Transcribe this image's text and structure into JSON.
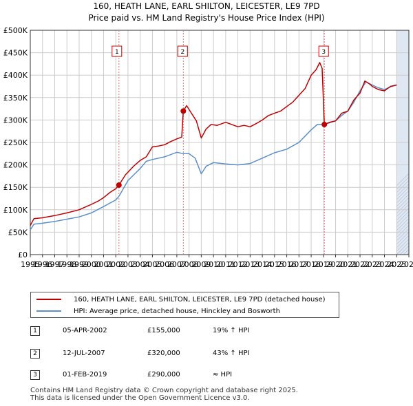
{
  "title_line1": "160, HEATH LANE, EARL SHILTON, LEICESTER, LE9 7PD",
  "title_line2": "Price paid vs. HM Land Registry's House Price Index (HPI)",
  "colors": {
    "property_line": "#c00000",
    "hpi_line": "#5b8fc8",
    "shade": "#dfe7f3",
    "grid": "#cccccc",
    "marker": "#c00000"
  },
  "legend": {
    "property": "160, HEATH LANE, EARL SHILTON, LEICESTER, LE9 7PD (detached house)",
    "hpi": "HPI: Average price, detached house, Hinckley and Bosworth"
  },
  "transactions": [
    {
      "num": "1",
      "date": "05-APR-2002",
      "price": "£155,000",
      "relation": "19% ↑ HPI"
    },
    {
      "num": "2",
      "date": "12-JUL-2007",
      "price": "£320,000",
      "relation": "43% ↑ HPI"
    },
    {
      "num": "3",
      "date": "01-FEB-2019",
      "price": "£290,000",
      "relation": "≈ HPI"
    }
  ],
  "footer": {
    "line1": "Contains HM Land Registry data © Crown copyright and database right 2025.",
    "line2": "This data is licensed under the Open Government Licence v3.0."
  },
  "chart_data": {
    "type": "line",
    "title": "Price paid vs. HM Land Registry's House Price Index (HPI)",
    "xlim": [
      1995,
      2026
    ],
    "ylim": [
      0,
      500000
    ],
    "x_ticks": [
      1995,
      1996,
      1997,
      1998,
      1999,
      2000,
      2001,
      2002,
      2003,
      2004,
      2005,
      2006,
      2007,
      2008,
      2009,
      2010,
      2011,
      2012,
      2013,
      2014,
      2015,
      2016,
      2017,
      2018,
      2019,
      2020,
      2021,
      2022,
      2023,
      2024,
      2025,
      2026
    ],
    "y_ticks": [
      0,
      50000,
      100000,
      150000,
      200000,
      250000,
      300000,
      350000,
      400000,
      450000,
      500000
    ],
    "y_tick_labels": [
      "£0",
      "£50K",
      "£100K",
      "£150K",
      "£200K",
      "£250K",
      "£300K",
      "£350K",
      "£400K",
      "£450K",
      "£500K"
    ],
    "shaded_after": 2025.0,
    "sales": [
      {
        "label": "1",
        "x": 2002.26,
        "y": 155000
      },
      {
        "label": "2",
        "x": 2007.53,
        "y": 320000
      },
      {
        "label": "3",
        "x": 2019.08,
        "y": 290000
      }
    ],
    "series": [
      {
        "name": "160, HEATH LANE, EARL SHILTON, LEICESTER, LE9 7PD (detached house)",
        "points": [
          [
            1995.0,
            65000
          ],
          [
            1995.3,
            80000
          ],
          [
            1996.0,
            82000
          ],
          [
            1997.0,
            87000
          ],
          [
            1998.0,
            93000
          ],
          [
            1999.0,
            100000
          ],
          [
            2000.0,
            112000
          ],
          [
            2000.6,
            120000
          ],
          [
            2001.0,
            127000
          ],
          [
            2001.5,
            138000
          ],
          [
            2002.0,
            147000
          ],
          [
            2002.26,
            155000
          ],
          [
            2002.8,
            178000
          ],
          [
            2003.5,
            198000
          ],
          [
            2004.0,
            210000
          ],
          [
            2004.5,
            218000
          ],
          [
            2005.0,
            240000
          ],
          [
            2005.5,
            242000
          ],
          [
            2006.0,
            245000
          ],
          [
            2006.5,
            252000
          ],
          [
            2007.0,
            258000
          ],
          [
            2007.4,
            262000
          ],
          [
            2007.53,
            320000
          ],
          [
            2007.8,
            332000
          ],
          [
            2008.2,
            315000
          ],
          [
            2008.6,
            298000
          ],
          [
            2009.0,
            260000
          ],
          [
            2009.4,
            280000
          ],
          [
            2009.8,
            290000
          ],
          [
            2010.3,
            288000
          ],
          [
            2011.0,
            295000
          ],
          [
            2011.5,
            290000
          ],
          [
            2012.0,
            285000
          ],
          [
            2012.5,
            288000
          ],
          [
            2013.0,
            285000
          ],
          [
            2013.5,
            292000
          ],
          [
            2014.0,
            300000
          ],
          [
            2014.5,
            310000
          ],
          [
            2015.0,
            315000
          ],
          [
            2015.5,
            320000
          ],
          [
            2016.0,
            330000
          ],
          [
            2016.5,
            340000
          ],
          [
            2017.0,
            355000
          ],
          [
            2017.5,
            370000
          ],
          [
            2018.0,
            400000
          ],
          [
            2018.4,
            412000
          ],
          [
            2018.7,
            428000
          ],
          [
            2018.9,
            415000
          ],
          [
            2019.08,
            290000
          ],
          [
            2019.5,
            295000
          ],
          [
            2020.0,
            298000
          ],
          [
            2020.5,
            315000
          ],
          [
            2021.0,
            320000
          ],
          [
            2021.5,
            345000
          ],
          [
            2022.0,
            360000
          ],
          [
            2022.4,
            387000
          ],
          [
            2022.8,
            380000
          ],
          [
            2023.0,
            375000
          ],
          [
            2023.5,
            368000
          ],
          [
            2024.0,
            365000
          ],
          [
            2024.5,
            375000
          ],
          [
            2025.0,
            378000
          ]
        ]
      },
      {
        "name": "HPI: Average price, detached house, Hinckley and Bosworth",
        "points": [
          [
            1995.0,
            55000
          ],
          [
            1995.3,
            68000
          ],
          [
            1996.0,
            70000
          ],
          [
            1997.0,
            74000
          ],
          [
            1998.0,
            79000
          ],
          [
            1999.0,
            84000
          ],
          [
            2000.0,
            93000
          ],
          [
            2001.0,
            107000
          ],
          [
            2002.0,
            122000
          ],
          [
            2002.26,
            130000
          ],
          [
            2003.0,
            165000
          ],
          [
            2004.0,
            192000
          ],
          [
            2004.5,
            208000
          ],
          [
            2005.0,
            212000
          ],
          [
            2006.0,
            218000
          ],
          [
            2007.0,
            228000
          ],
          [
            2007.53,
            225000
          ],
          [
            2008.0,
            225000
          ],
          [
            2008.5,
            215000
          ],
          [
            2009.0,
            180000
          ],
          [
            2009.4,
            197000
          ],
          [
            2010.0,
            205000
          ],
          [
            2011.0,
            202000
          ],
          [
            2012.0,
            200000
          ],
          [
            2013.0,
            203000
          ],
          [
            2014.0,
            215000
          ],
          [
            2015.0,
            227000
          ],
          [
            2016.0,
            235000
          ],
          [
            2017.0,
            250000
          ],
          [
            2018.0,
            278000
          ],
          [
            2018.5,
            290000
          ],
          [
            2019.08,
            290000
          ],
          [
            2020.0,
            298000
          ],
          [
            2020.5,
            310000
          ],
          [
            2021.0,
            320000
          ],
          [
            2021.5,
            340000
          ],
          [
            2022.0,
            365000
          ],
          [
            2022.5,
            385000
          ],
          [
            2023.0,
            378000
          ],
          [
            2023.5,
            372000
          ],
          [
            2024.0,
            368000
          ],
          [
            2024.5,
            374000
          ],
          [
            2025.0,
            378000
          ]
        ]
      }
    ]
  }
}
